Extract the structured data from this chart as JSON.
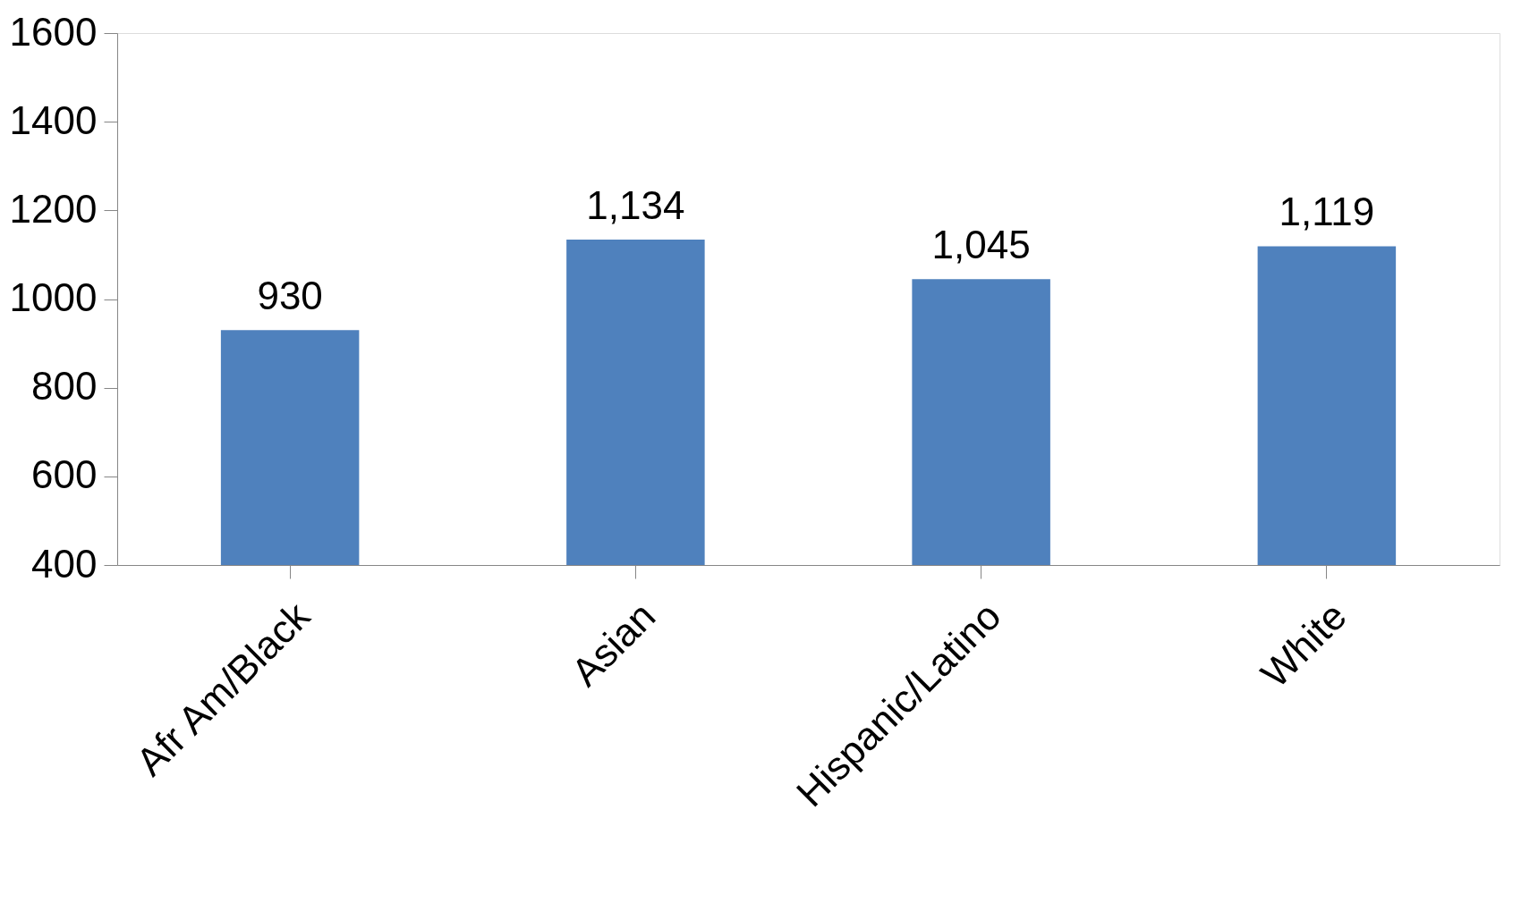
{
  "chart_data": {
    "type": "bar",
    "categories": [
      "Afr Am/Black",
      "Asian",
      "Hispanic/Latino",
      "White"
    ],
    "values": [
      930,
      1134,
      1045,
      1119
    ],
    "value_labels": [
      "930",
      "1,134",
      "1,045",
      "1,119"
    ],
    "color": "#4f81bd",
    "ylim": [
      400,
      1600
    ],
    "yticks": [
      400,
      600,
      800,
      1000,
      1200,
      1400,
      1600
    ],
    "grid": false
  }
}
